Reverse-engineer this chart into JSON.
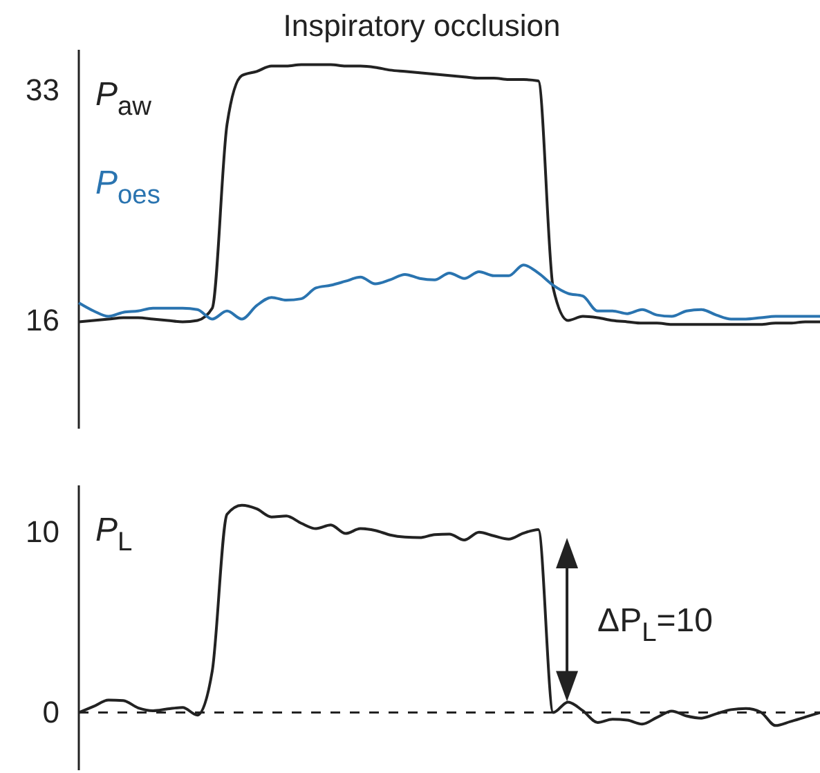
{
  "chart_data": [
    {
      "type": "line",
      "title": "Inspiratory occlusion",
      "categories": [
        null,
        null,
        null,
        null,
        null,
        null,
        null,
        null,
        null,
        null,
        null,
        null,
        null,
        null,
        null,
        null,
        null,
        null,
        null,
        null,
        null,
        null,
        null,
        null,
        null,
        null,
        null,
        null,
        null,
        null,
        null,
        null,
        null,
        null,
        null,
        null,
        null,
        null,
        null,
        null,
        null,
        null,
        null,
        null,
        null,
        null,
        null,
        null,
        null,
        null,
        null
      ],
      "ylim": [
        8,
        36
      ],
      "yticks": [
        16,
        33
      ],
      "tick_labels": "y",
      "marker": "none",
      "line_style": "solid",
      "series": [
        {
          "name": "P$_{aw}$",
          "color": "#222222",
          "values": [
            15.9,
            16.0,
            16.1,
            16.2,
            16.2,
            16.1,
            16.0,
            15.9,
            16.0,
            16.9,
            30.5,
            34.1,
            34.4,
            34.8,
            34.8,
            34.9,
            34.9,
            34.9,
            34.8,
            34.8,
            34.7,
            34.5,
            34.4,
            34.3,
            34.2,
            34.1,
            34.0,
            33.9,
            33.9,
            33.8,
            33.8,
            33.7,
            18.4,
            16.0,
            16.3,
            16.2,
            16.0,
            15.9,
            15.8,
            15.8,
            15.7,
            15.7,
            15.7,
            15.7,
            15.7,
            15.7,
            15.7,
            15.8,
            15.8,
            15.9,
            15.9
          ]
        },
        {
          "name": "P$_{oes}$",
          "color": "#2a74b0",
          "values": [
            17.3,
            16.7,
            16.3,
            16.6,
            16.7,
            16.9,
            16.9,
            16.9,
            16.8,
            16.1,
            16.7,
            16.1,
            17.1,
            17.7,
            17.5,
            17.6,
            18.4,
            18.6,
            18.9,
            19.2,
            18.7,
            19.0,
            19.4,
            19.1,
            19.0,
            19.5,
            19.1,
            19.6,
            19.3,
            19.3,
            20.1,
            19.5,
            18.6,
            18.0,
            17.8,
            16.7,
            16.7,
            16.5,
            16.8,
            16.4,
            16.3,
            16.7,
            16.8,
            16.4,
            16.1,
            16.1,
            16.2,
            16.3,
            16.3,
            16.3,
            16.3
          ]
        }
      ]
    },
    {
      "type": "line",
      "categories": [
        null,
        null,
        null,
        null,
        null,
        null,
        null,
        null,
        null,
        null,
        null,
        null,
        null,
        null,
        null,
        null,
        null,
        null,
        null,
        null,
        null,
        null,
        null,
        null,
        null,
        null,
        null,
        null,
        null,
        null,
        null,
        null,
        null,
        null,
        null,
        null,
        null,
        null,
        null,
        null,
        null,
        null,
        null,
        null,
        null,
        null,
        null,
        null,
        null,
        null,
        null
      ],
      "ylim": [
        -3.2,
        12.6
      ],
      "yticks": [
        0,
        10
      ],
      "tick_labels": "y",
      "marker": "none",
      "line_style": "solid",
      "ref_lines": [
        {
          "axis": "y",
          "value": 0,
          "label": null,
          "color": "#222222",
          "line_style": "dashed"
        }
      ],
      "annotations": [
        "ΔP$_{L}$=10"
      ],
      "series": [
        {
          "name": "P$_{L}$",
          "color": "#222222",
          "values": [
            0,
            0.34,
            0.69,
            0.66,
            0.26,
            0.1,
            0.2,
            0.28,
            -0.14,
            2.3,
            11.0,
            11.5,
            11.3,
            10.85,
            10.9,
            10.5,
            10.2,
            10.4,
            9.93,
            10.2,
            10.1,
            9.85,
            9.73,
            9.7,
            9.87,
            9.9,
            9.57,
            10.0,
            9.8,
            9.62,
            9.95,
            10.15,
            0,
            0.58,
            0.1,
            -0.55,
            -0.37,
            -0.42,
            -0.64,
            -0.27,
            0.08,
            -0.19,
            -0.31,
            -0.07,
            0.16,
            0.22,
            0.02,
            -0.72,
            -0.5,
            -0.25,
            0
          ]
        }
      ]
    }
  ]
}
